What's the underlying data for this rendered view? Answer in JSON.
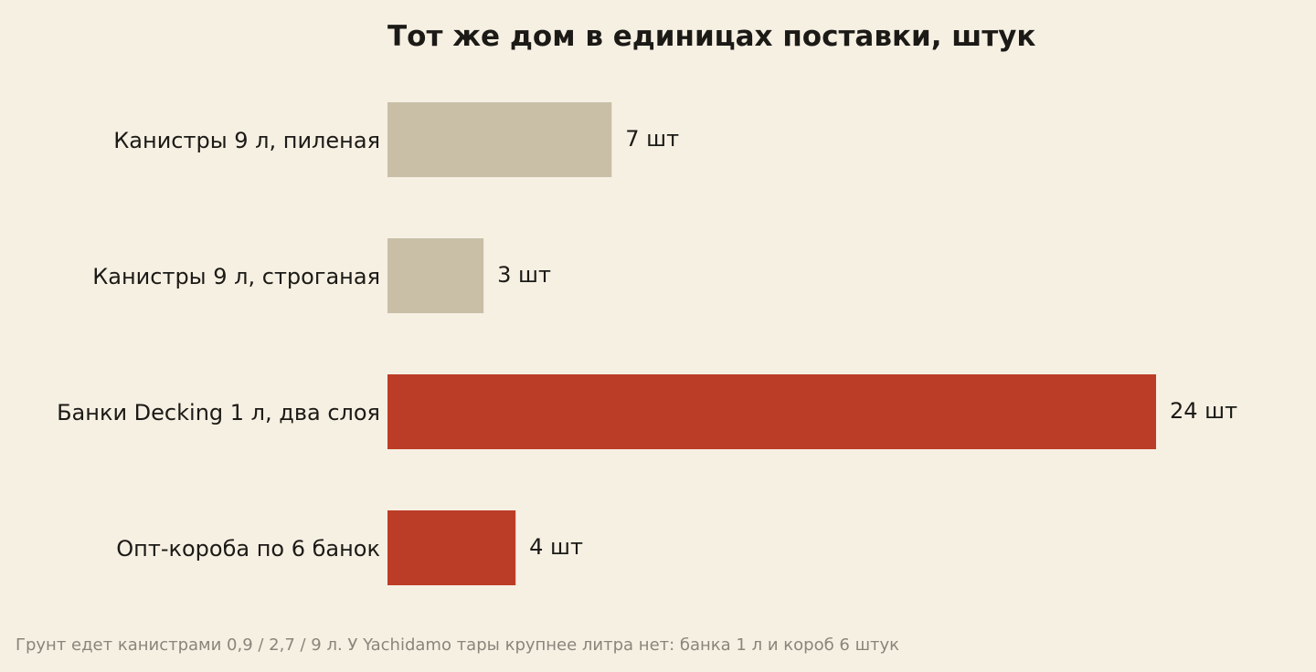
{
  "chart_data": {
    "type": "bar",
    "orientation": "horizontal",
    "title": "Тот же дом в единицах поставки, штук",
    "categories": [
      "Канистры 9 л, пиленая",
      "Канистры 9 л, строганая",
      "Банки Decking 1 л, два слоя",
      "Опт-короба по 6 банок"
    ],
    "values": [
      7,
      3,
      24,
      4
    ],
    "value_labels": [
      "7 шт",
      "3 шт",
      "24 шт",
      "4 шт"
    ],
    "bar_colors": [
      "#c9bfa7",
      "#c9bfa7",
      "#bc3d27",
      "#bc3d27"
    ],
    "xlim": [
      0,
      24
    ],
    "grid": false,
    "legend": "none"
  },
  "footnote": "Грунт едет канистрами 0,9 / 2,7 / 9 л. У Yachidamo тары крупнее литра нет: банка 1 л и короб 6 штук"
}
